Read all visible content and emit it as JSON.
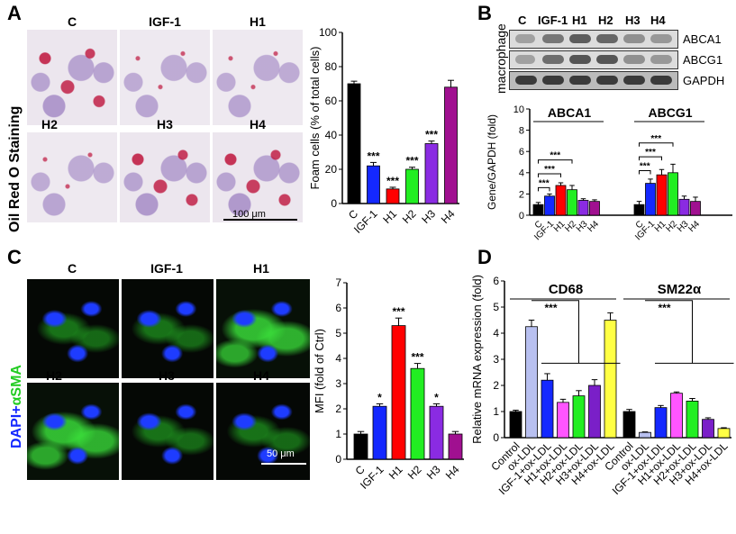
{
  "panels": {
    "A": {
      "letter": "A",
      "side_label": "Oil Red O Staining",
      "image_titles": [
        "C",
        "IGF-1",
        "H1",
        "H2",
        "H3",
        "H4"
      ],
      "scale_bar": "100 μm"
    },
    "B": {
      "letter": "B",
      "side_label": "macrophage",
      "lane_labels": [
        "C",
        "IGF-1",
        "H1",
        "H2",
        "H3",
        "H4"
      ],
      "bands": [
        "ABCA1",
        "ABCG1",
        "GAPDH"
      ]
    },
    "C": {
      "letter": "C",
      "side_label_part1": "DAPI+",
      "side_label_part2": "αSMA",
      "image_titles": [
        "C",
        "IGF-1",
        "H1",
        "H2",
        "H3",
        "H4"
      ],
      "scale_bar": "50 μm"
    },
    "D": {
      "letter": "D"
    }
  },
  "colors": {
    "C": "#000000",
    "IGF-1": "#1428ff",
    "H1": "#ff0000",
    "H2": "#22ee22",
    "H3": "#8a2be2",
    "H4": "#a01090",
    "ox": [
      "#000000",
      "#b8c0f0",
      "#1428ff",
      "#ff55ff",
      "#22ee22",
      "#7a1fc8",
      "#ffff44"
    ]
  },
  "chart_data": [
    {
      "id": "A-foam",
      "type": "bar",
      "ylabel": "Foam cells (% of total cells)",
      "categories": [
        "C",
        "IGF-1",
        "H1",
        "H2",
        "H3",
        "H4"
      ],
      "values": [
        70,
        22,
        8.5,
        20,
        35,
        68
      ],
      "errors": [
        1.5,
        2,
        1,
        1.2,
        1.5,
        4
      ],
      "sig": [
        "",
        "***",
        "***",
        "***",
        "***",
        ""
      ],
      "ylim": [
        0,
        100
      ],
      "yticks": [
        0,
        20,
        40,
        60,
        80,
        100
      ]
    },
    {
      "id": "B-genes",
      "type": "bar",
      "ylabel": "Gene/GAPDH (fold)",
      "groups": [
        {
          "name": "ABCA1",
          "categories": [
            "C",
            "IGF-1",
            "H1",
            "H2",
            "H3",
            "H4"
          ],
          "values": [
            1.0,
            1.8,
            2.8,
            2.4,
            1.4,
            1.3
          ],
          "errors": [
            0.2,
            0.2,
            0.25,
            0.4,
            0.15,
            0.15
          ]
        },
        {
          "name": "ABCG1",
          "categories": [
            "C",
            "IGF-1",
            "H1",
            "H2",
            "H3",
            "H4"
          ],
          "values": [
            1.0,
            3.0,
            3.8,
            4.0,
            1.5,
            1.3
          ],
          "errors": [
            0.3,
            0.4,
            0.5,
            0.8,
            0.3,
            0.4
          ]
        }
      ],
      "sig": "***",
      "ylim": [
        0,
        10
      ],
      "yticks": [
        0,
        2,
        4,
        6,
        8,
        10
      ]
    },
    {
      "id": "C-mfi",
      "type": "bar",
      "ylabel": "MFI (fold of Ctrl)",
      "categories": [
        "C",
        "IGF-1",
        "H1",
        "H2",
        "H3",
        "H4"
      ],
      "values": [
        1.0,
        2.1,
        5.3,
        3.6,
        2.1,
        1.0
      ],
      "errors": [
        0.1,
        0.1,
        0.3,
        0.2,
        0.1,
        0.1
      ],
      "sig": [
        "",
        "*",
        "***",
        "***",
        "*",
        ""
      ],
      "ylim": [
        0,
        7
      ],
      "yticks": [
        0,
        1,
        2,
        3,
        4,
        5,
        6,
        7
      ]
    },
    {
      "id": "D-mrna",
      "type": "bar",
      "ylabel": "Relative mRNA expression (fold)",
      "groups": [
        {
          "name": "CD68",
          "categories": [
            "Control",
            "ox-LDL",
            "IGF-1+ox-LDL",
            "H1+ox-LDL",
            "H2+ox-LDL",
            "H3+ox-LDL",
            "H4+ox-LDL"
          ],
          "values": [
            1.0,
            4.25,
            2.2,
            1.35,
            1.6,
            2.0,
            4.5
          ],
          "errors": [
            0.05,
            0.25,
            0.25,
            0.12,
            0.2,
            0.22,
            0.28
          ]
        },
        {
          "name": "SM22α",
          "categories": [
            "Control",
            "ox-LDL",
            "IGF-1+ox-LDL",
            "H1+ox-LDL",
            "H2+ox-LDL",
            "H3+ox-LDL",
            "H4+ox-LDL"
          ],
          "values": [
            1.0,
            0.2,
            1.15,
            1.7,
            1.4,
            0.7,
            0.35
          ],
          "errors": [
            0.08,
            0.02,
            0.08,
            0.05,
            0.1,
            0.06,
            0.03
          ]
        }
      ],
      "sig": "***",
      "ylim": [
        0,
        6
      ],
      "yticks": [
        0,
        1,
        2,
        3,
        4,
        5,
        6
      ]
    }
  ]
}
